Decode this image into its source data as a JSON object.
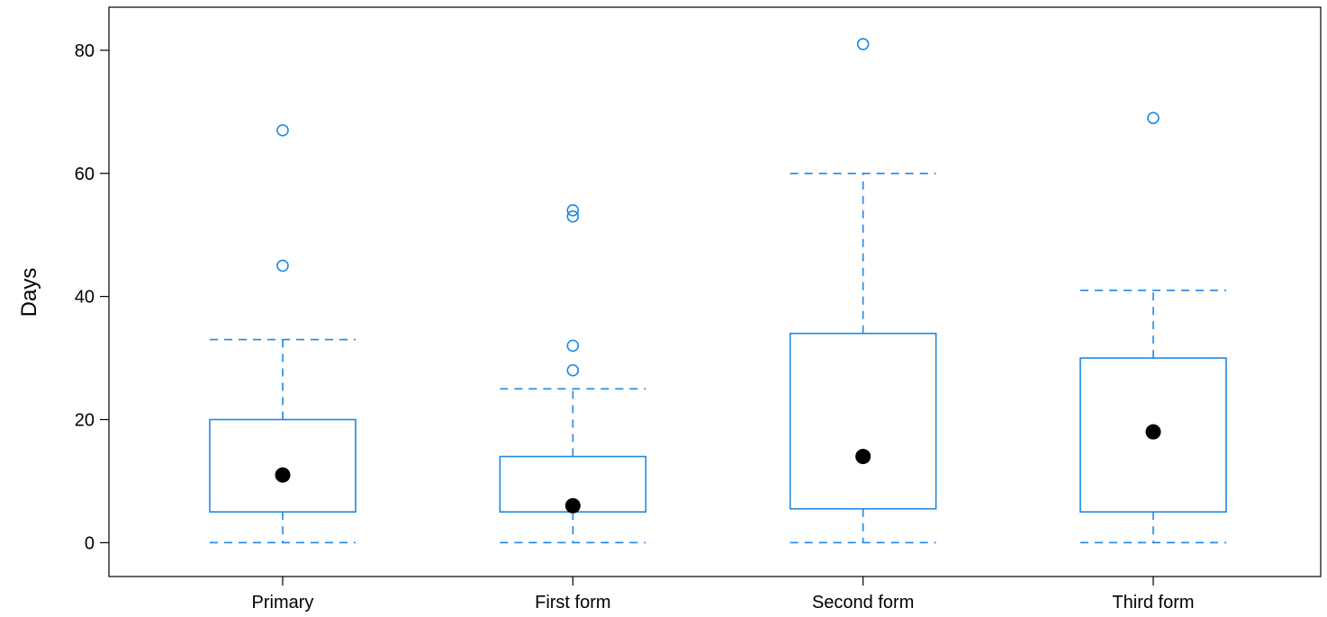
{
  "chart_data": {
    "type": "boxplot",
    "title": "",
    "xlabel": "",
    "ylabel": "Days",
    "ylim": [
      -5.5,
      87
    ],
    "yticks": [
      0,
      20,
      40,
      60,
      80
    ],
    "grid": false,
    "categories": [
      "Primary",
      "First form",
      "Second form",
      "Third form"
    ],
    "boxes": [
      {
        "category": "Primary",
        "whisker_low": 0,
        "q1": 5,
        "median": 11,
        "q3": 20,
        "whisker_high": 33,
        "outliers": [
          45,
          67
        ]
      },
      {
        "category": "First form",
        "whisker_low": 0,
        "q1": 5,
        "median": 6,
        "q3": 14,
        "whisker_high": 25,
        "outliers": [
          28,
          32,
          53,
          54
        ]
      },
      {
        "category": "Second form",
        "whisker_low": 0,
        "q1": 5.5,
        "median": 14,
        "q3": 34,
        "whisker_high": 60,
        "outliers": [
          81
        ]
      },
      {
        "category": "Third form",
        "whisker_low": 0,
        "q1": 5,
        "median": 18,
        "q3": 30,
        "whisker_high": 41,
        "outliers": [
          69
        ]
      }
    ],
    "colors": {
      "box": "#1e88e5",
      "median": "#000000",
      "frame": "#000000"
    }
  }
}
